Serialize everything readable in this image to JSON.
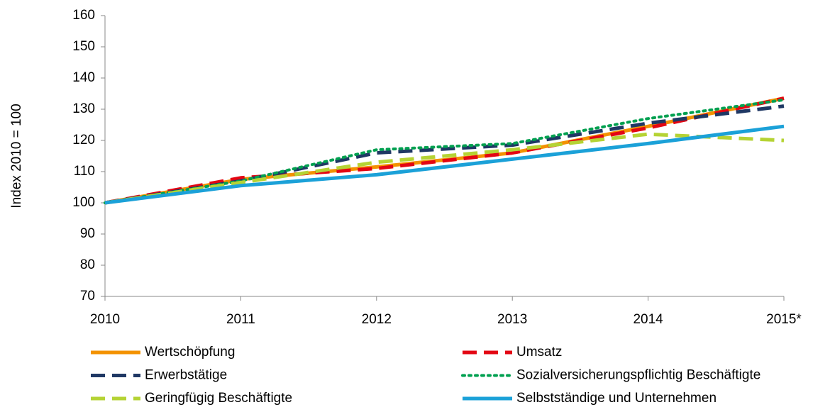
{
  "chart_data": {
    "type": "line",
    "ylabel": "Index 2010 = 100",
    "categories": [
      "2010",
      "2011",
      "2012",
      "2013",
      "2014",
      "2015*"
    ],
    "ylim": [
      70,
      160
    ],
    "yticks": [
      70,
      80,
      90,
      100,
      110,
      120,
      130,
      140,
      150,
      160
    ],
    "grid": false,
    "series": [
      {
        "name": "Wertschöpfung",
        "color": "#f39200",
        "style": "solid",
        "values": [
          100,
          107.5,
          111.5,
          116,
          124.5,
          133.5
        ]
      },
      {
        "name": "Umsatz",
        "color": "#e30613",
        "style": "dashed",
        "values": [
          100,
          108,
          111,
          116,
          124,
          133.5
        ]
      },
      {
        "name": "Erwerbstätige",
        "color": "#1f3864",
        "style": "dashed",
        "values": [
          100,
          107,
          116,
          118.5,
          125.5,
          131
        ]
      },
      {
        "name": "Sozialversicherungspflichtig Beschäftigte",
        "color": "#00a050",
        "style": "dotted",
        "values": [
          100,
          107,
          117,
          119,
          127,
          133
        ]
      },
      {
        "name": "Geringfügig Beschäftigte",
        "color": "#b5d334",
        "style": "dashed",
        "values": [
          100,
          106.5,
          113,
          117,
          122,
          120
        ]
      },
      {
        "name": "Selbstständige und Unternehmen",
        "color": "#1ba1d8",
        "style": "solid",
        "values": [
          100,
          105.5,
          109,
          114,
          119,
          124.5
        ]
      }
    ]
  }
}
